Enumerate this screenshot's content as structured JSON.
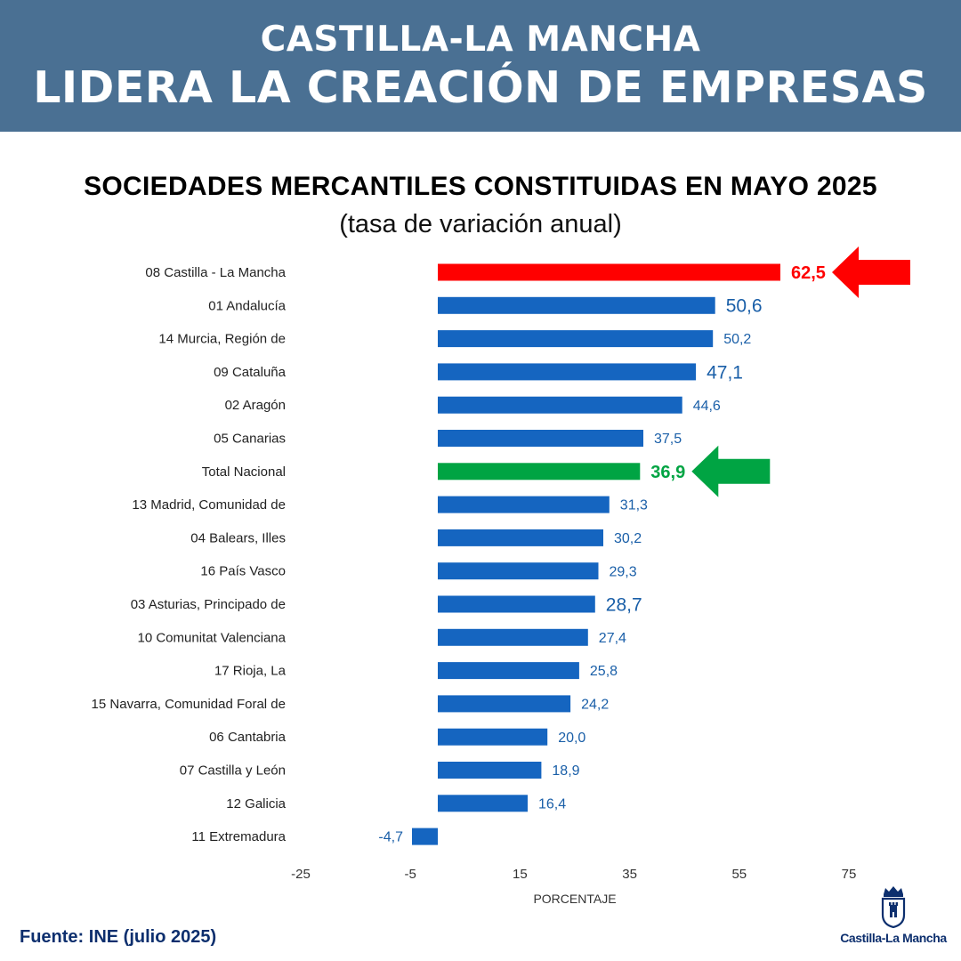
{
  "header": {
    "line1": "CASTILLA-LA MANCHA",
    "line2": "LIDERA LA CREACIÓN DE EMPRESAS"
  },
  "chart_data": {
    "type": "bar",
    "orientation": "horizontal",
    "title": "SOCIEDADES MERCANTILES CONSTITUIDAS EN MAYO 2025",
    "subtitle": "(tasa de variación anual)",
    "xlabel": "PORCENTAJE",
    "ylabel": "",
    "xlim": [
      -25,
      75
    ],
    "x_ticks": [
      -25,
      -5,
      15,
      35,
      55,
      75
    ],
    "grid": false,
    "categories": [
      "08 Castilla - La Mancha",
      "01 Andalucía",
      "14 Murcia, Región de",
      "09 Cataluña",
      "02 Aragón",
      "05 Canarias",
      "Total Nacional",
      "13 Madrid, Comunidad de",
      "04 Balears, Illes",
      "16 País Vasco",
      "03 Asturias, Principado de",
      "10 Comunitat Valenciana",
      "17 Rioja, La",
      "15 Navarra, Comunidad Foral de",
      "06 Cantabria",
      "07 Castilla y León",
      "12 Galicia",
      "11 Extremadura"
    ],
    "values": [
      62.5,
      50.6,
      50.2,
      47.1,
      44.6,
      37.5,
      36.9,
      31.3,
      30.2,
      29.3,
      28.7,
      27.4,
      25.8,
      24.2,
      20.0,
      18.9,
      16.4,
      -4.7
    ],
    "value_labels": [
      "62,5",
      "50,6",
      "50,2",
      "47,1",
      "44,6",
      "37,5",
      "36,9",
      "31,3",
      "30,2",
      "29,3",
      "28,7",
      "27,4",
      "25,8",
      "24,2",
      "20,0",
      "18,9",
      "16,4",
      "-4,7"
    ],
    "label_emphasis": [
      "bold",
      "large",
      "normal",
      "large",
      "normal",
      "normal",
      "bold",
      "normal",
      "normal",
      "normal",
      "large",
      "normal",
      "normal",
      "normal",
      "normal",
      "normal",
      "normal",
      "normal"
    ],
    "bar_colors": [
      "#ff0000",
      "#1565c0",
      "#1565c0",
      "#1565c0",
      "#1565c0",
      "#1565c0",
      "#00a443",
      "#1565c0",
      "#1565c0",
      "#1565c0",
      "#1565c0",
      "#1565c0",
      "#1565c0",
      "#1565c0",
      "#1565c0",
      "#1565c0",
      "#1565c0",
      "#1565c0"
    ],
    "highlight_arrows": [
      {
        "category": "08 Castilla - La Mancha",
        "color": "#ff0000"
      },
      {
        "category": "Total Nacional",
        "color": "#00a443"
      }
    ]
  },
  "colors": {
    "header_bg": "#4a7093",
    "default_bar": "#1565c0",
    "value_label": "#1a5fa8",
    "source_text": "#0d2f6e"
  },
  "source": "Fuente: INE (julio 2025)",
  "logo": {
    "text": "Castilla-La Mancha",
    "icon": "castle-crest-icon"
  }
}
